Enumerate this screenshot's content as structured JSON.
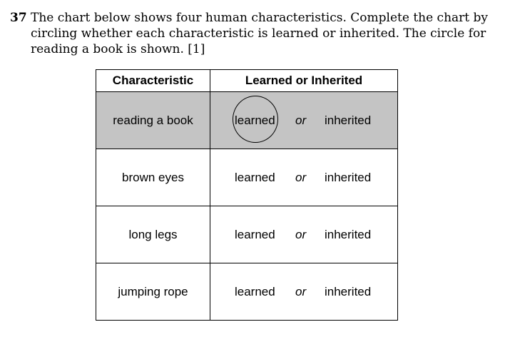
{
  "question": {
    "number": "37",
    "lines": [
      "The chart below shows four human characteristics. Complete the chart by",
      "circling whether each characteristic is learned or inherited. The circle for",
      "reading a book is shown.  [1]"
    ]
  },
  "chart": {
    "headers": {
      "characteristic": "Characteristic",
      "choice": "Learned or Inherited"
    },
    "rows": [
      {
        "characteristic": "reading a book",
        "learned": "learned",
        "or": "or",
        "inherited": "inherited",
        "circled": "learned",
        "shaded": true
      },
      {
        "characteristic": "brown eyes",
        "learned": "learned",
        "or": "or",
        "inherited": "inherited",
        "circled": "",
        "shaded": false
      },
      {
        "characteristic": "long legs",
        "learned": "learned",
        "or": "or",
        "inherited": "inherited",
        "circled": "",
        "shaded": false
      },
      {
        "characteristic": "jumping rope",
        "learned": "learned",
        "or": "or",
        "inherited": "inherited",
        "circled": "",
        "shaded": false
      }
    ]
  }
}
